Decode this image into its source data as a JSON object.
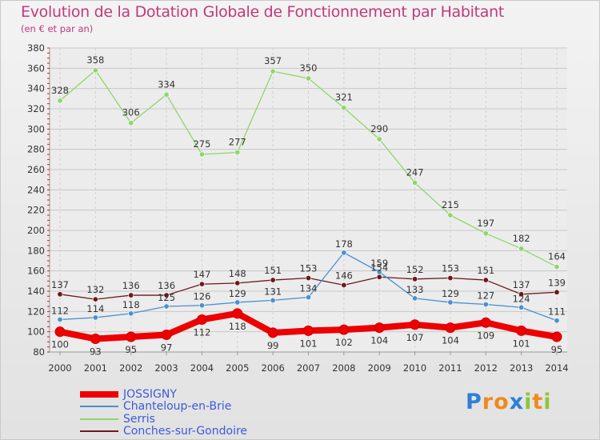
{
  "header": {
    "title": "Evolution de la Dotation Globale de Fonctionnement par Habitant",
    "subtitle": "(en € et par an)"
  },
  "chart_data": {
    "type": "line",
    "x": [
      "2000",
      "2001",
      "2002",
      "2003",
      "2004",
      "2005",
      "2006",
      "2007",
      "2008",
      "2009",
      "2010",
      "2011",
      "2012",
      "2013",
      "2014"
    ],
    "ylim": [
      80,
      380
    ],
    "ytick_step": 20,
    "grid": true,
    "legend_position": "bottom-left",
    "series": [
      {
        "name": "JOSSIGNY",
        "color": "#ee0000",
        "values": [
          100,
          93,
          95,
          97,
          112,
          118,
          99,
          101,
          102,
          104,
          107,
          104,
          109,
          101,
          95
        ]
      },
      {
        "name": "Chanteloup-en-Brie",
        "color": "#4a90d0",
        "values": [
          112,
          114,
          118,
          125,
          126,
          129,
          131,
          134,
          178,
          159,
          133,
          129,
          127,
          124,
          111
        ]
      },
      {
        "name": "Serris",
        "color": "#8fd66a",
        "values": [
          328,
          358,
          306,
          334,
          275,
          277,
          357,
          350,
          321,
          290,
          247,
          215,
          197,
          182,
          164
        ]
      },
      {
        "name": "Conches-sur-Gondoire",
        "color": "#6b1a1a",
        "values": [
          137,
          132,
          136,
          136,
          147,
          148,
          151,
          153,
          146,
          154,
          152,
          153,
          151,
          137,
          139
        ]
      }
    ]
  },
  "logo": {
    "letters": [
      {
        "ch": "P",
        "color": "#2f7fd8"
      },
      {
        "ch": "r",
        "color": "#f08a1c"
      },
      {
        "ch": "o",
        "color": "#f08a1c"
      },
      {
        "ch": "x",
        "color": "#2f7fd8"
      },
      {
        "ch": "i",
        "color": "#8cc63f"
      },
      {
        "ch": "t",
        "color": "#f08a1c"
      },
      {
        "ch": "i",
        "color": "#8cc63f"
      }
    ]
  }
}
